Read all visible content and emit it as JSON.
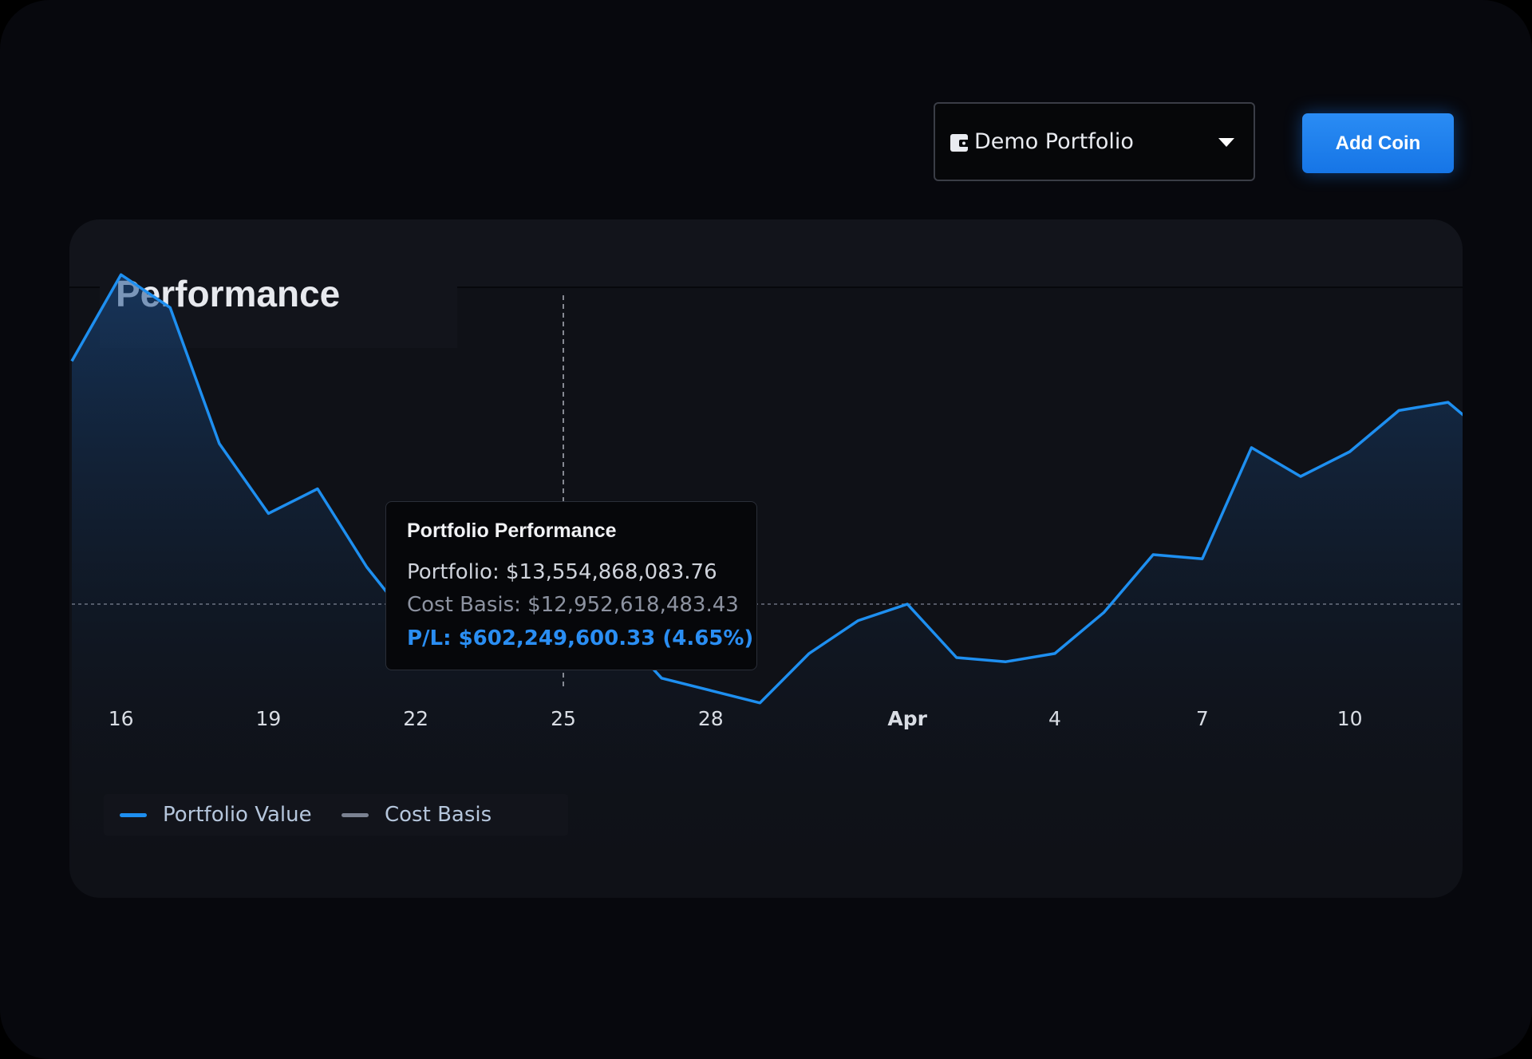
{
  "header": {
    "portfolio_selector": {
      "value": "Demo Portfolio",
      "icon": "wallet-icon"
    },
    "add_coin_label": "Add Coin"
  },
  "card": {
    "title": "Performance"
  },
  "tooltip": {
    "title": "Portfolio Performance",
    "portfolio": "Portfolio: $13,554,868,083.76",
    "cost_basis": "Cost Basis: $12,952,618,483.43",
    "pl": "P/L: $602,249,600.33 (4.65%)"
  },
  "colors": {
    "accent": "#1e90ff",
    "portfolio_line": "#1e8ff0",
    "cost_basis_line": "#7b8292",
    "card_bg": "#0f1117",
    "page_bg": "#07080d"
  },
  "chart_data": {
    "type": "area",
    "title": "Performance",
    "x_tick_labels": [
      "16",
      "19",
      "22",
      "25",
      "28",
      "Apr",
      "4",
      "7",
      "10"
    ],
    "ylim": [
      9.5,
      17.0
    ],
    "grid": false,
    "legend_placement": "bottom-left",
    "hover_index": 10,
    "series": [
      {
        "name": "Portfolio Value",
        "values": [
          15.9,
          16.95,
          16.55,
          14.9,
          14.05,
          14.35,
          13.4,
          12.65,
          13.95,
          13.85,
          13.55,
          12.7,
          12.05,
          11.9,
          11.75,
          12.35,
          12.75,
          12.95,
          12.3,
          12.25,
          12.35,
          12.85,
          13.55,
          13.5,
          14.85,
          14.5,
          14.8,
          15.3,
          15.4,
          14.9,
          15.2
        ]
      },
      {
        "name": "Cost Basis",
        "values": [
          12.95,
          12.95,
          12.95,
          12.95,
          12.95,
          12.95,
          12.95,
          12.95,
          12.95,
          12.95,
          12.95,
          12.95,
          12.95,
          12.95,
          12.95,
          12.95,
          12.95,
          12.95,
          12.95,
          12.95,
          12.95,
          12.95,
          12.95,
          12.95,
          12.95,
          12.95,
          12.95,
          12.95,
          12.95,
          12.95,
          12.95
        ]
      }
    ]
  },
  "legend": [
    {
      "label": "Portfolio Value",
      "color": "#1e8ff0"
    },
    {
      "label": "Cost Basis",
      "color": "#7b8292"
    }
  ]
}
